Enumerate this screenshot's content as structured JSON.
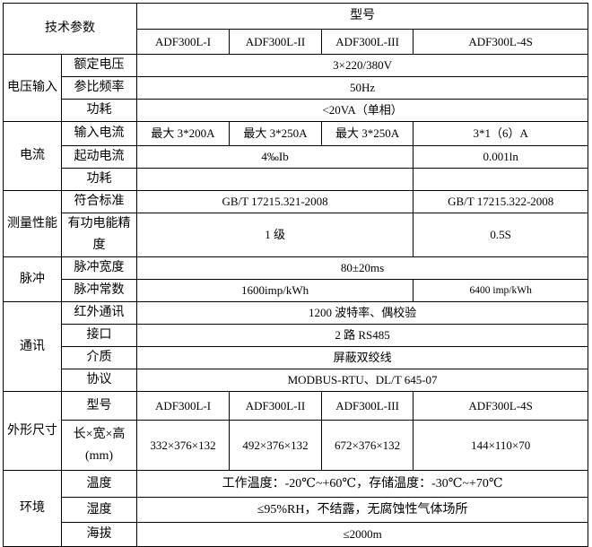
{
  "header": {
    "tech_params": "技术参数",
    "model": "型号",
    "models": [
      "ADF300L-I",
      "ADF300L-II",
      "ADF300L-III",
      "ADF300L-4S"
    ]
  },
  "voltage_input": {
    "group": "电压输入",
    "rated_voltage": {
      "label": "额定电压",
      "value": "3×220/380V"
    },
    "ref_frequency": {
      "label": "参比频率",
      "value": "50Hz"
    },
    "power": {
      "label": "功耗",
      "value": "<20VA（单相）"
    }
  },
  "current": {
    "group": "电流",
    "input_current": {
      "label": "输入电流",
      "values": [
        "最大 3*200A",
        "最大 3*250A",
        "最大 3*250A",
        "3*1（6）A"
      ]
    },
    "start_current": {
      "label": "起动电流",
      "value_main": "4‰Ib",
      "value_4s": "0.001ln"
    },
    "power": {
      "label": "功耗",
      "value_main": "",
      "value_4s": ""
    }
  },
  "measurement": {
    "group": "测量性能",
    "standard": {
      "label": "符合标准",
      "value_main": "GB/T 17215.321-2008",
      "value_4s": "GB/T 17215.322-2008"
    },
    "accuracy": {
      "label": "有功电能精度",
      "value_main": "1 级",
      "value_4s": "0.5S"
    }
  },
  "pulse": {
    "group": "脉冲",
    "width": {
      "label": "脉冲宽度",
      "value": "80±20ms"
    },
    "constant": {
      "label": "脉冲常数",
      "value_main": "1600imp/kWh",
      "value_4s": "6400 imp/kWh"
    }
  },
  "communication": {
    "group": "通讯",
    "infrared": {
      "label": "红外通讯",
      "value": "1200 波特率、偶校验"
    },
    "interface": {
      "label": "接口",
      "value": "2 路 RS485"
    },
    "medium": {
      "label": "介质",
      "value": "屏蔽双绞线"
    },
    "protocol": {
      "label": "协议",
      "value": "MODBUS-RTU、DL/T 645-07"
    }
  },
  "dimensions": {
    "group": "外形尺寸",
    "model": {
      "label": "型号",
      "values": [
        "ADF300L-I",
        "ADF300L-II",
        "ADF300L-III",
        "ADF300L-4S"
      ]
    },
    "size": {
      "label": "长×宽×高(mm)",
      "values": [
        "332×376×132",
        "492×376×132",
        "672×376×132",
        "144×110×70"
      ]
    }
  },
  "environment": {
    "group": "环境",
    "temperature": {
      "label": "温度",
      "value": "工作温度：-20℃~+60℃，存储温度：-30℃~+70℃"
    },
    "humidity": {
      "label": "湿度",
      "value": "≤95%RH，不结露，无腐蚀性气体场所"
    },
    "altitude": {
      "label": "海拔",
      "value": "≤2000m"
    }
  }
}
